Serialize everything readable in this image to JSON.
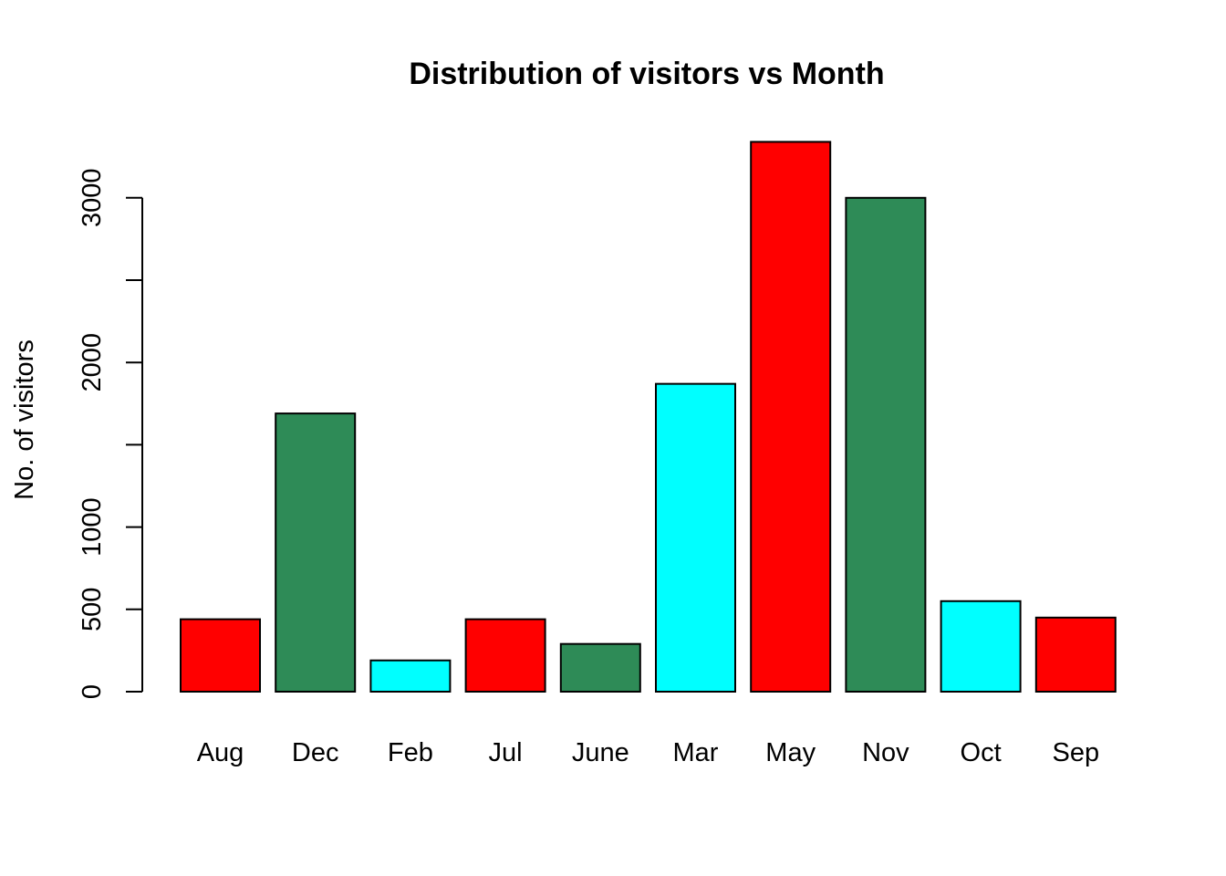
{
  "chart_data": {
    "type": "bar",
    "title": "Distribution of visitors vs Month",
    "xlabel": "",
    "ylabel": "No. of visitors",
    "categories": [
      "Aug",
      "Dec",
      "Feb",
      "Jul",
      "June",
      "Mar",
      "May",
      "Nov",
      "Oct",
      "Sep"
    ],
    "values": [
      440,
      1690,
      190,
      440,
      290,
      1870,
      3340,
      3000,
      550,
      450
    ],
    "colors": [
      "#ff0000",
      "#2e8b57",
      "#00ffff",
      "#ff0000",
      "#2e8b57",
      "#00ffff",
      "#ff0000",
      "#2e8b57",
      "#00ffff",
      "#ff0000"
    ],
    "yticks": [
      0,
      500,
      1000,
      1500,
      2000,
      2500,
      3000
    ],
    "ytick_labels": [
      "0",
      "500",
      "1000",
      "",
      "2000",
      "",
      "3000"
    ],
    "ylim": [
      0,
      3340
    ],
    "grid": false,
    "legend": "none"
  }
}
